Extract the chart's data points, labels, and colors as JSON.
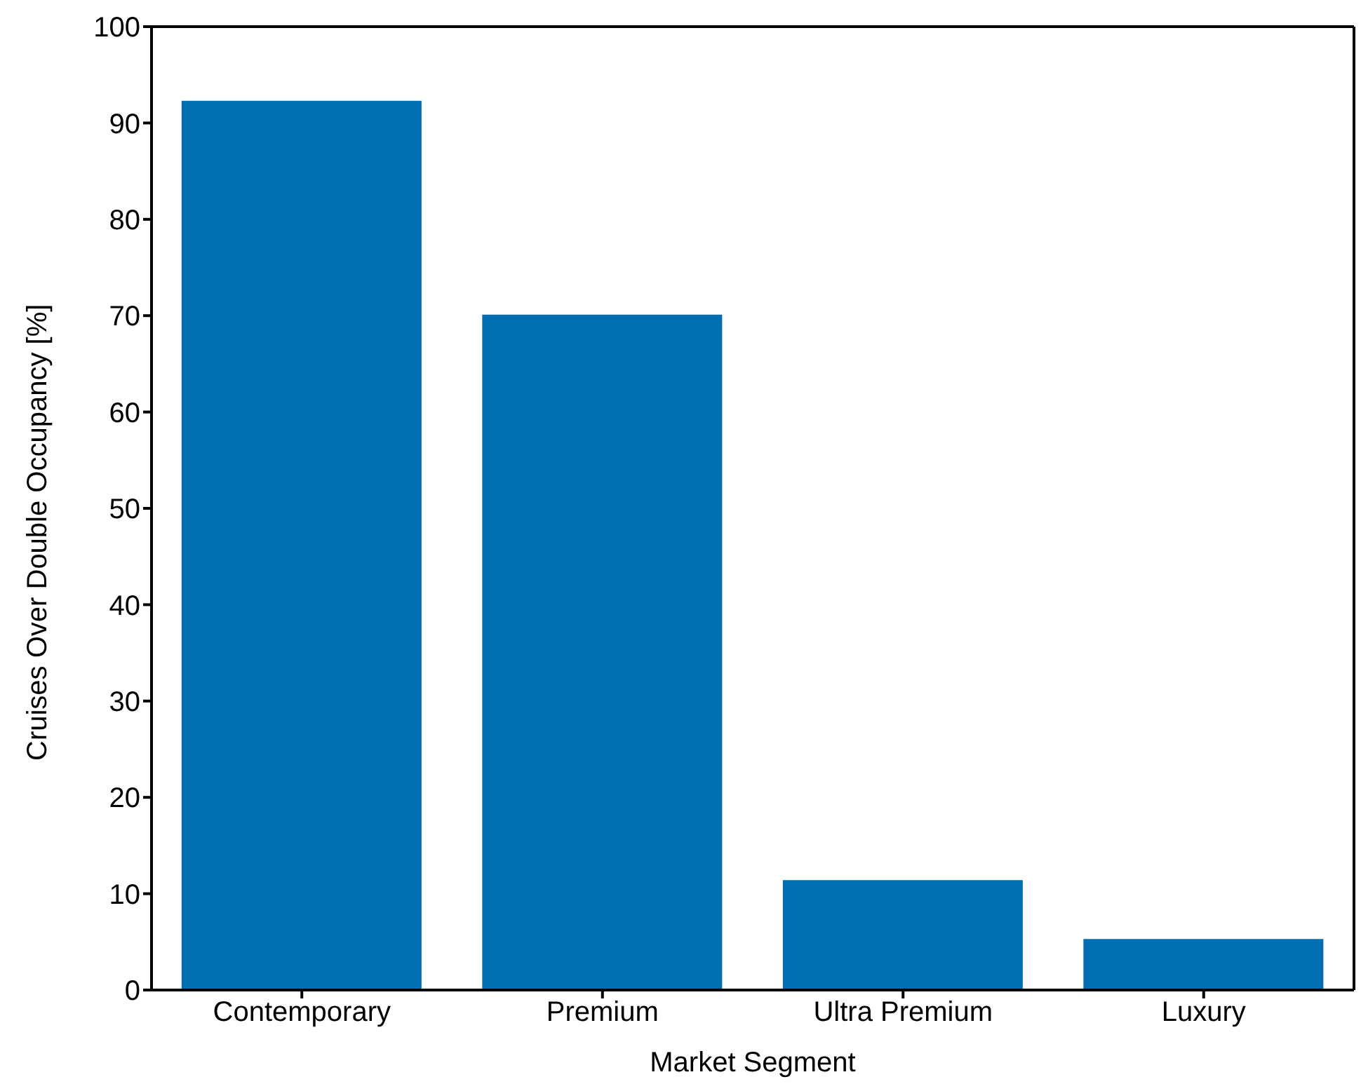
{
  "chart_data": {
    "type": "bar",
    "xlabel": "Market Segment",
    "ylabel": "Cruises Over Double Occupancy [%]",
    "categories": [
      "Contemporary",
      "Premium",
      "Ultra Premium",
      "Luxury"
    ],
    "values": [
      92.3,
      70.1,
      11.4,
      5.3
    ],
    "color": "#006eb0",
    "ylim": [
      0,
      100
    ],
    "yticks": [
      0,
      10,
      20,
      30,
      40,
      50,
      60,
      70,
      80,
      90,
      100
    ],
    "grid": false,
    "legend": false
  }
}
